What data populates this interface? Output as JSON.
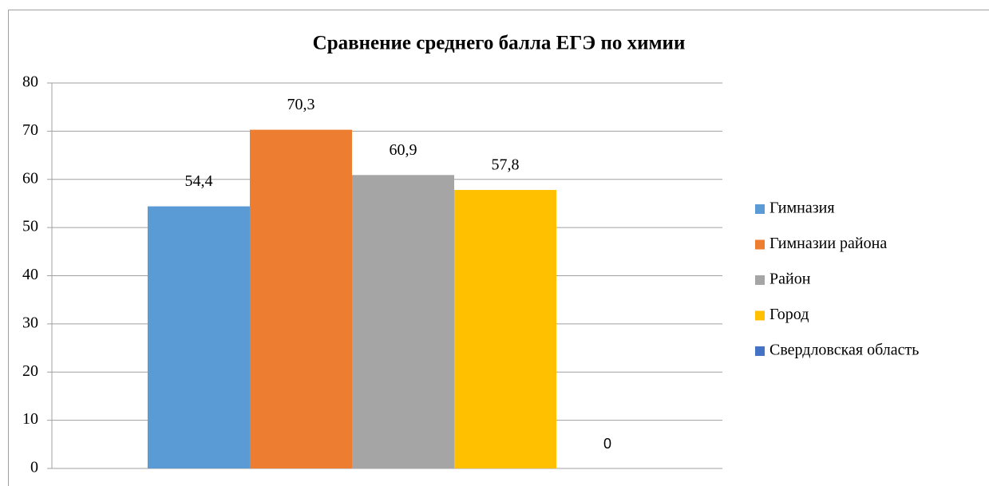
{
  "chart_data": {
    "type": "bar",
    "title": "Сравнение среднего балла ЕГЭ по химии",
    "categories": [
      null
    ],
    "series": [
      {
        "name": "Гимназия",
        "color": "#5b9bd5",
        "values": [
          54.4
        ],
        "value_labels": [
          "54,4"
        ]
      },
      {
        "name": "Гимназии района",
        "color": "#ed7d31",
        "values": [
          70.3
        ],
        "value_labels": [
          "70,3"
        ]
      },
      {
        "name": "Район",
        "color": "#a5a5a5",
        "values": [
          60.9
        ],
        "value_labels": [
          "60,9"
        ]
      },
      {
        "name": "Город",
        "color": "#ffc000",
        "values": [
          57.8
        ],
        "value_labels": [
          "57,8"
        ]
      },
      {
        "name": "Свердловская область",
        "color": "#4472c4",
        "values": [
          0
        ]
      }
    ],
    "ylim": [
      0,
      80
    ],
    "yticks": [
      0,
      10,
      20,
      30,
      40,
      50,
      60,
      70,
      80
    ],
    "grid": true,
    "legend": "right"
  }
}
